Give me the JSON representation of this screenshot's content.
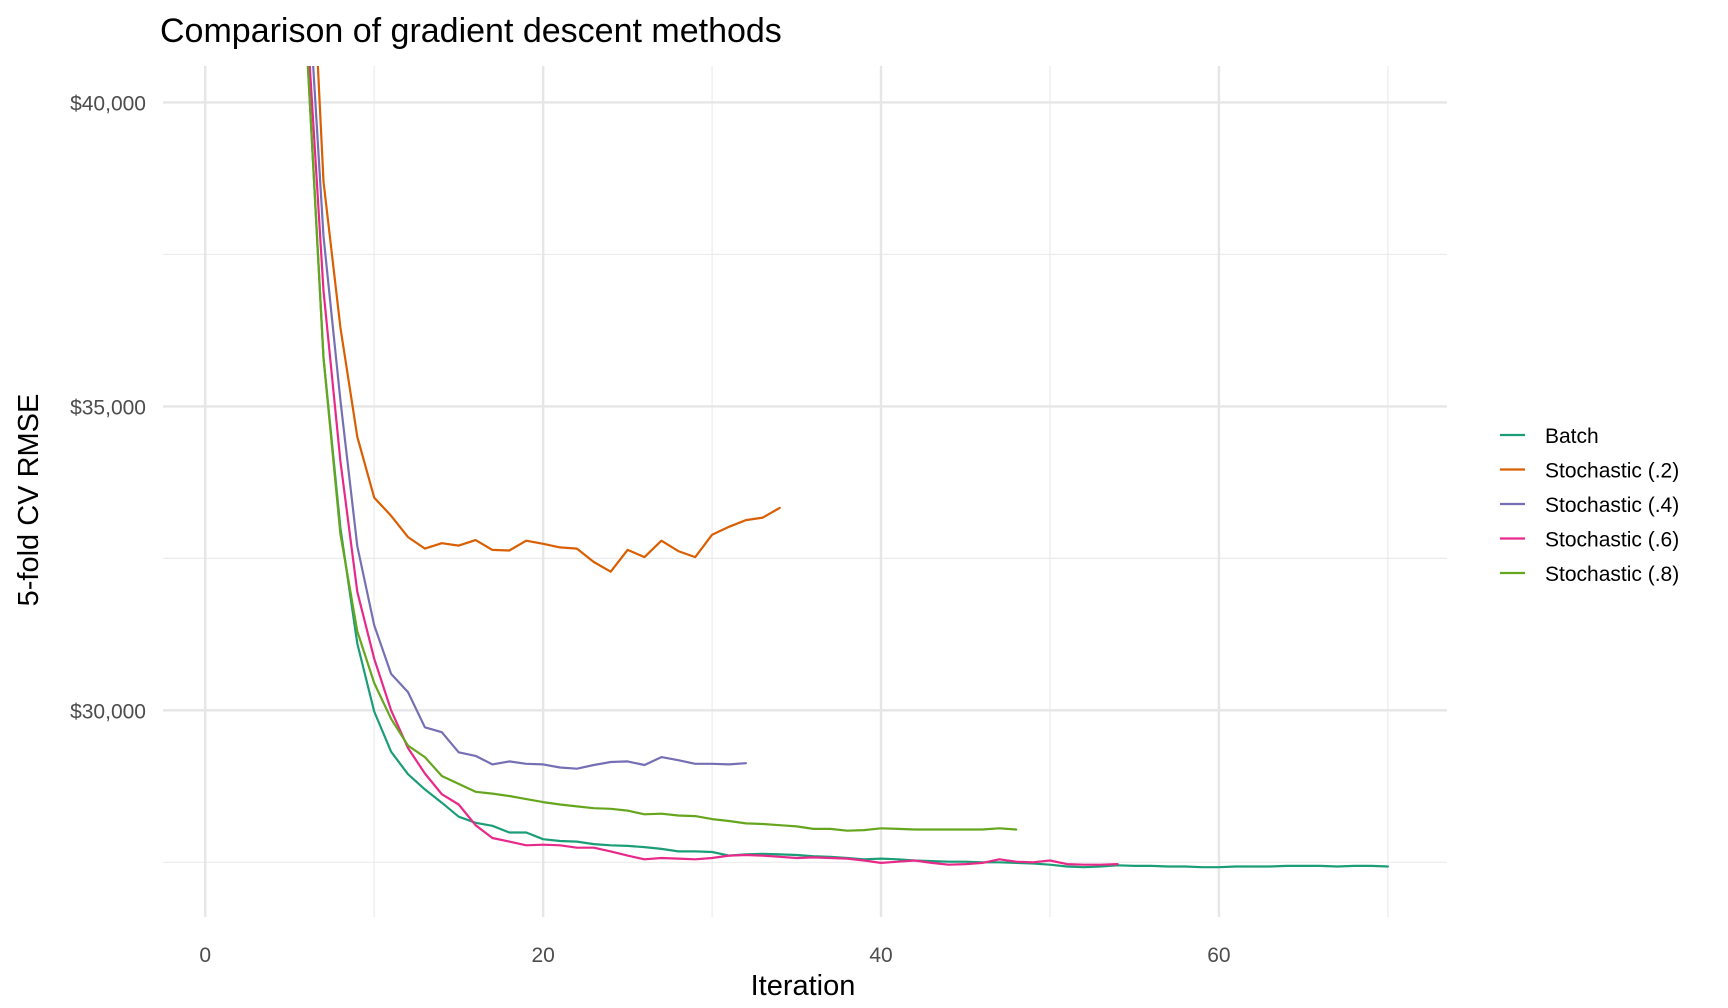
{
  "chart_data": {
    "type": "line",
    "title": "Comparison of gradient descent methods",
    "xlabel": "Iteration",
    "ylabel": "5-fold CV RMSE",
    "xlim": [
      -2.5,
      73.5
    ],
    "ylim": [
      26600,
      40600
    ],
    "x_ticks": [
      0,
      20,
      40,
      60
    ],
    "x_tick_labels": [
      "0",
      "20",
      "40",
      "60"
    ],
    "x_minor_ticks": [
      10,
      30,
      50,
      70
    ],
    "y_ticks": [
      30000,
      35000,
      40000
    ],
    "y_tick_labels": [
      "$30,000",
      "$35,000",
      "$40,000"
    ],
    "y_minor_ticks": [
      27500,
      32500,
      37500
    ],
    "grid": true,
    "legend_position": "right",
    "series": [
      {
        "name": "Batch",
        "color": "#1b9e77",
        "x": [
          6,
          7,
          8,
          9,
          10,
          11,
          12,
          13,
          14,
          15,
          16,
          17,
          18,
          19,
          20,
          21,
          22,
          23,
          24,
          25,
          26,
          27,
          28,
          29,
          30,
          31,
          32,
          33,
          34,
          35,
          36,
          37,
          38,
          39,
          40,
          41,
          42,
          43,
          44,
          45,
          46,
          47,
          48,
          49,
          50,
          51,
          52,
          53,
          54,
          55,
          56,
          57,
          58,
          59,
          60,
          61,
          62,
          63,
          64,
          65,
          66,
          67,
          68,
          69,
          70
        ],
        "y": [
          41000,
          35800,
          33000,
          31100,
          29980,
          29320,
          28950,
          28700,
          28480,
          28250,
          28150,
          28100,
          27990,
          27990,
          27880,
          27850,
          27840,
          27800,
          27780,
          27770,
          27750,
          27720,
          27680,
          27680,
          27670,
          27610,
          27630,
          27640,
          27630,
          27620,
          27600,
          27590,
          27570,
          27550,
          27560,
          27550,
          27530,
          27520,
          27510,
          27510,
          27500,
          27500,
          27490,
          27480,
          27460,
          27430,
          27420,
          27430,
          27450,
          27440,
          27440,
          27430,
          27430,
          27420,
          27420,
          27430,
          27430,
          27430,
          27440,
          27440,
          27440,
          27430,
          27440,
          27440,
          27430
        ]
      },
      {
        "name": "Stochastic (.2)",
        "color": "#d95f02",
        "x": [
          6.6,
          7,
          8,
          9,
          10,
          11,
          12,
          13,
          14,
          15,
          16,
          17,
          18,
          19,
          20,
          21,
          22,
          23,
          24,
          25,
          26,
          27,
          28,
          29,
          30,
          31,
          32,
          33,
          34
        ],
        "y": [
          41000,
          38700,
          36300,
          34500,
          33500,
          33200,
          32850,
          32660,
          32750,
          32710,
          32800,
          32640,
          32630,
          32790,
          32740,
          32680,
          32660,
          32440,
          32280,
          32640,
          32520,
          32790,
          32620,
          32520,
          32890,
          33020,
          33130,
          33170,
          33330
        ]
      },
      {
        "name": "Stochastic (.4)",
        "color": "#7570b3",
        "x": [
          6.3,
          7,
          8,
          9,
          10,
          11,
          12,
          13,
          14,
          15,
          16,
          17,
          18,
          19,
          20,
          21,
          22,
          23,
          24,
          25,
          26,
          27,
          28,
          29,
          30,
          31,
          32
        ],
        "y": [
          41000,
          37800,
          35100,
          32700,
          31400,
          30600,
          30300,
          29720,
          29640,
          29310,
          29250,
          29110,
          29160,
          29120,
          29110,
          29060,
          29040,
          29100,
          29150,
          29160,
          29100,
          29230,
          29180,
          29120,
          29120,
          29110,
          29130
        ]
      },
      {
        "name": "Stochastic (.6)",
        "color": "#e7298a",
        "x": [
          6.1,
          7,
          8,
          9,
          10,
          11,
          12,
          13,
          14,
          15,
          16,
          17,
          18,
          19,
          20,
          21,
          22,
          23,
          24,
          25,
          26,
          27,
          28,
          29,
          30,
          31,
          32,
          33,
          34,
          35,
          36,
          37,
          38,
          39,
          40,
          41,
          42,
          43,
          44,
          45,
          46,
          47,
          48,
          49,
          50,
          51,
          52,
          53,
          54
        ],
        "y": [
          41000,
          36900,
          34100,
          31950,
          30850,
          30000,
          29380,
          28960,
          28620,
          28450,
          28110,
          27900,
          27840,
          27780,
          27790,
          27780,
          27740,
          27740,
          27680,
          27610,
          27550,
          27570,
          27560,
          27550,
          27570,
          27610,
          27620,
          27610,
          27590,
          27570,
          27580,
          27570,
          27560,
          27530,
          27490,
          27510,
          27530,
          27490,
          27460,
          27470,
          27490,
          27550,
          27510,
          27500,
          27530,
          27470,
          27460,
          27460,
          27470
        ]
      },
      {
        "name": "Stochastic (.8)",
        "color": "#66a61e",
        "x": [
          6,
          7,
          8,
          9,
          10,
          11,
          12,
          13,
          14,
          15,
          16,
          17,
          18,
          19,
          20,
          21,
          22,
          23,
          24,
          25,
          26,
          27,
          28,
          29,
          30,
          31,
          32,
          33,
          34,
          35,
          36,
          37,
          38,
          39,
          40,
          41,
          42,
          43,
          44,
          45,
          46,
          47,
          48
        ],
        "y": [
          41000,
          35800,
          32900,
          31300,
          30450,
          29860,
          29420,
          29230,
          28920,
          28790,
          28660,
          28630,
          28590,
          28540,
          28490,
          28450,
          28420,
          28390,
          28380,
          28350,
          28290,
          28300,
          28270,
          28260,
          28210,
          28180,
          28140,
          28130,
          28110,
          28090,
          28050,
          28050,
          28020,
          28030,
          28060,
          28050,
          28040,
          28040,
          28040,
          28040,
          28040,
          28060,
          28040
        ]
      }
    ]
  }
}
